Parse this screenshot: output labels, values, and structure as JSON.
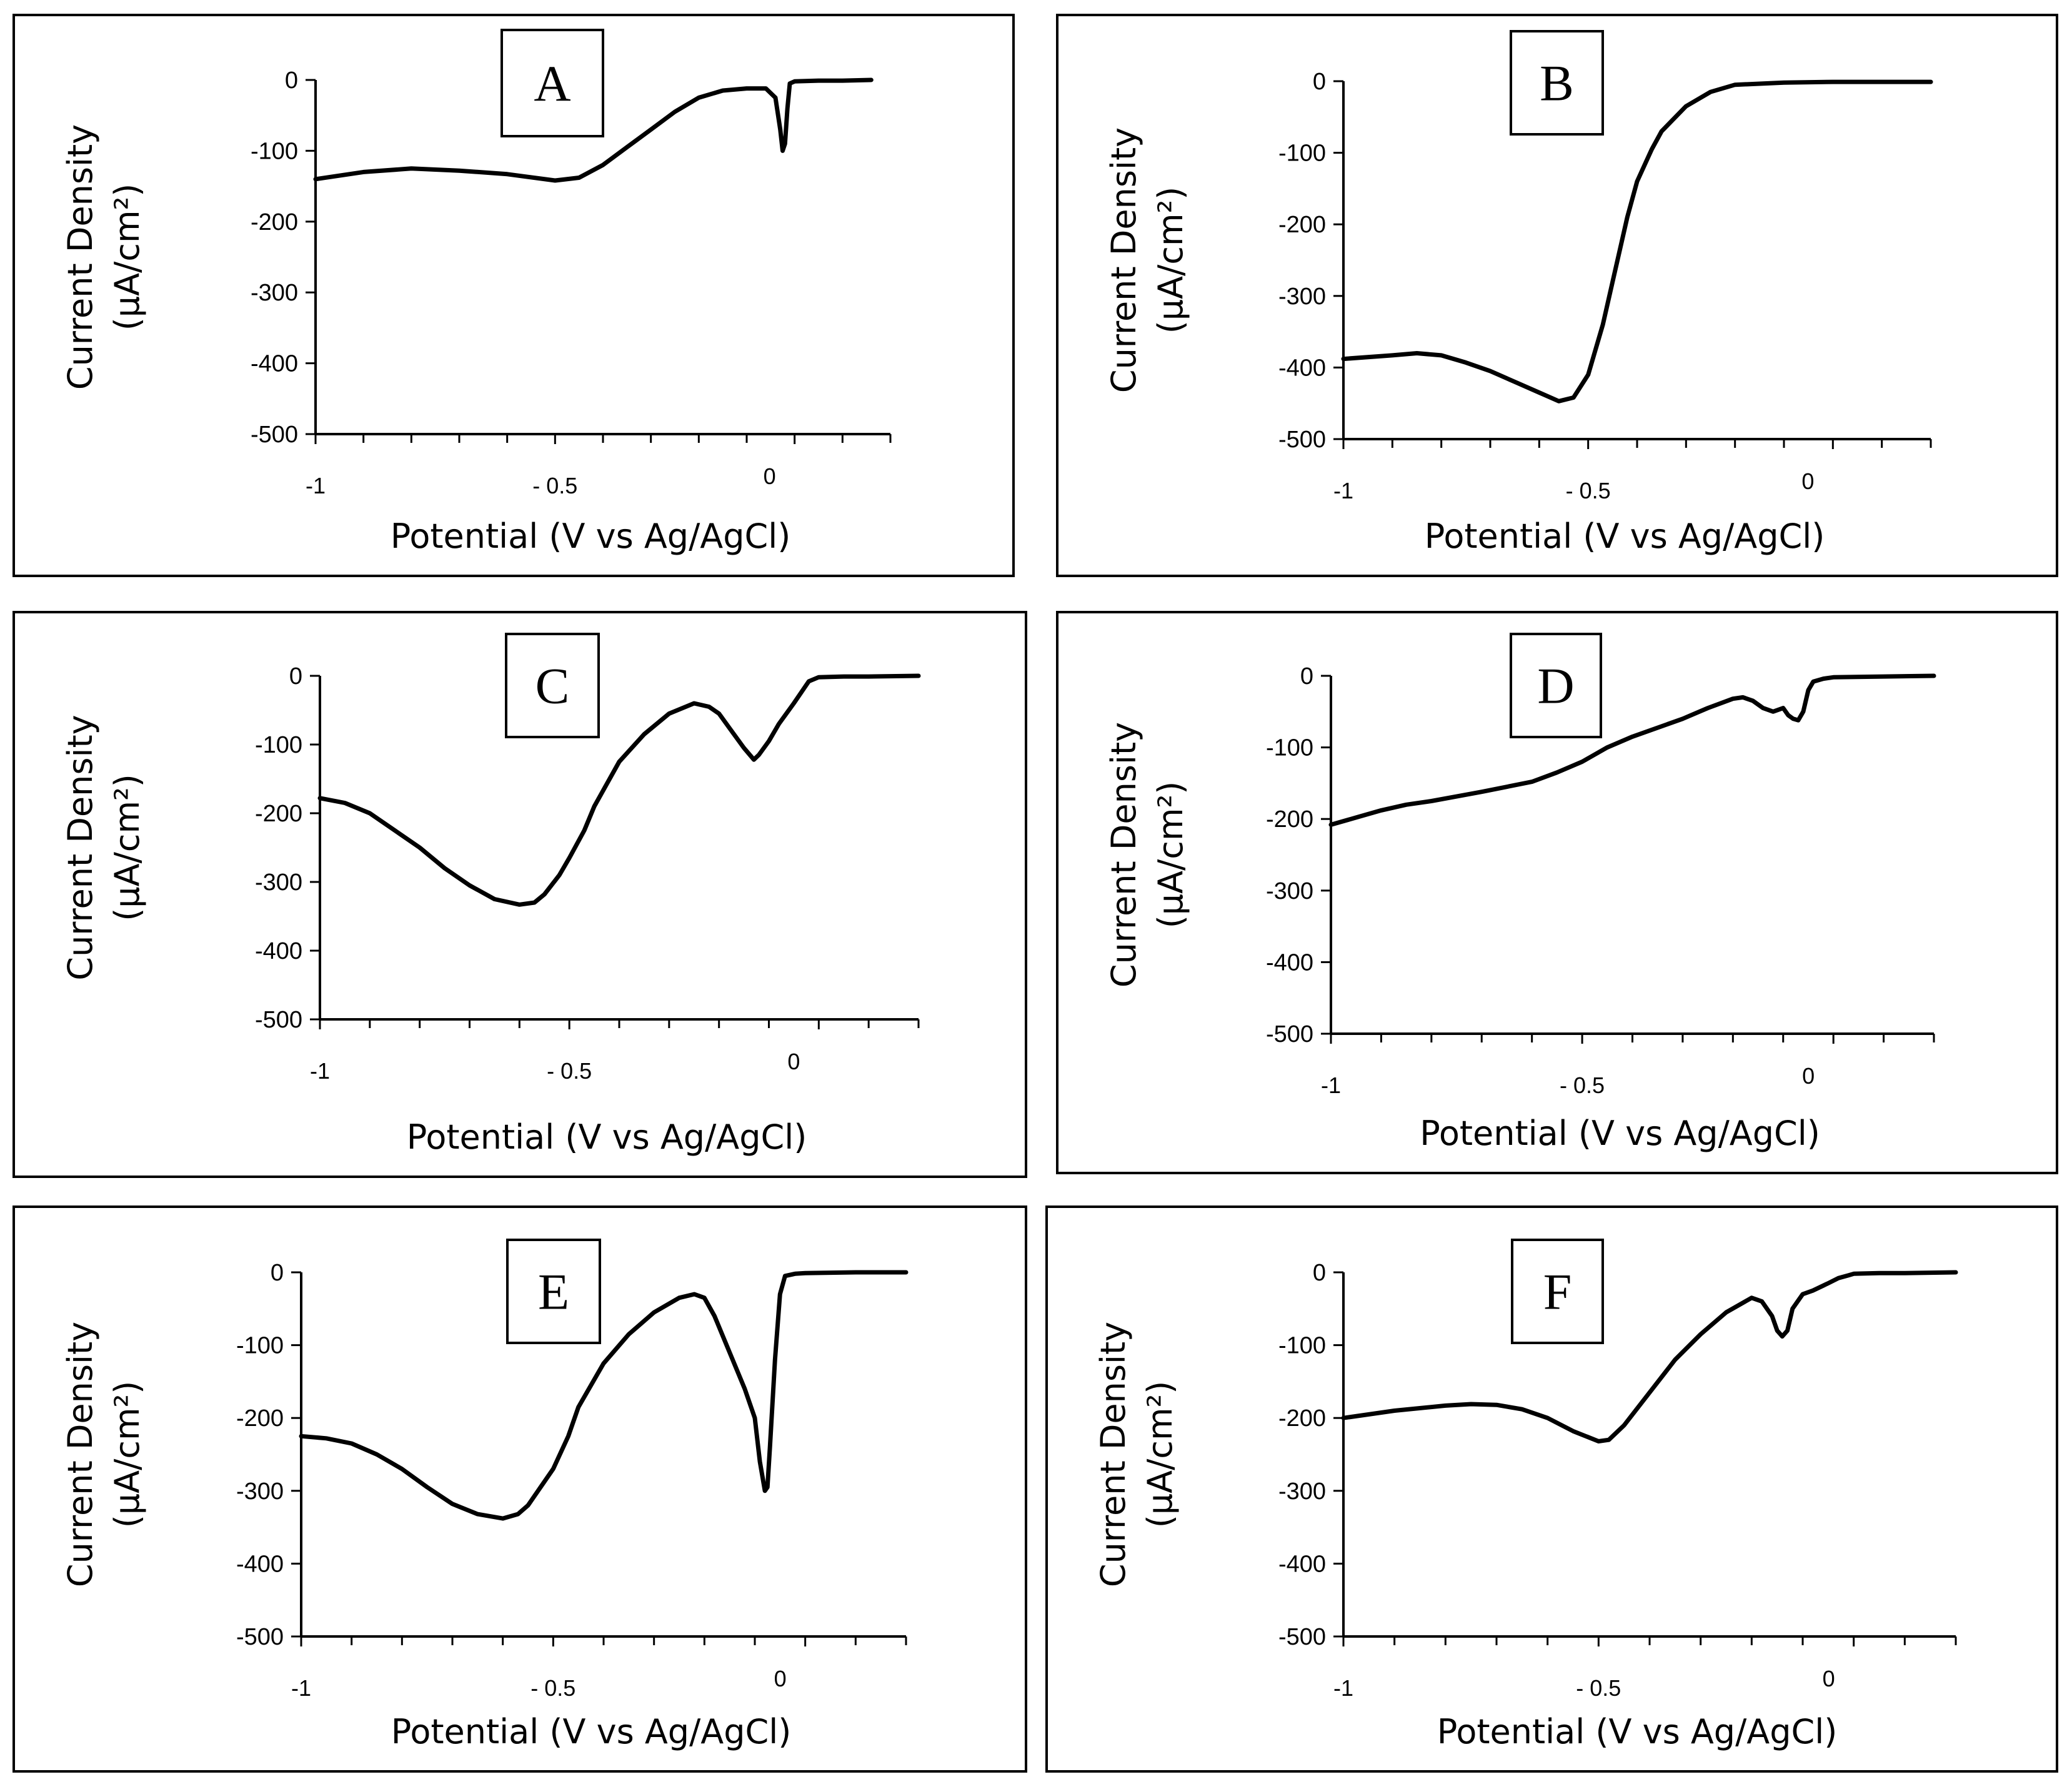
{
  "chart_data": [
    {
      "type": "line",
      "panel_label": "A",
      "xlabel": "Potential (V vs Ag/AgCl)",
      "ylabel_line1": "Current Density",
      "ylabel_line2": "(µA/cm²)",
      "xlim": [
        -1,
        0.2
      ],
      "ylim": [
        -500,
        0
      ],
      "xticks": [
        {
          "v": -1,
          "label": "-1"
        },
        {
          "v": -0.5,
          "label": "- 0.5"
        },
        {
          "v": 0,
          "label": "0"
        }
      ],
      "yticks": [
        {
          "v": 0,
          "label": "0"
        },
        {
          "v": -100,
          "label": "-100"
        },
        {
          "v": -200,
          "label": "-200"
        },
        {
          "v": -300,
          "label": "-300"
        },
        {
          "v": -400,
          "label": "-400"
        },
        {
          "v": -500,
          "label": "-500"
        }
      ],
      "series": [
        {
          "x": [
            -1,
            -0.9,
            -0.8,
            -0.7,
            -0.6,
            -0.5,
            -0.45,
            -0.4,
            -0.35,
            -0.3,
            -0.25,
            -0.2,
            -0.15,
            -0.1,
            -0.06,
            -0.04,
            -0.03,
            -0.025,
            -0.02,
            -0.015,
            -0.01,
            0.0,
            0.05,
            0.1,
            0.16
          ],
          "y": [
            -140,
            -130,
            -125,
            -128,
            -133,
            -142,
            -138,
            -120,
            -95,
            -70,
            -45,
            -25,
            -15,
            -12,
            -12,
            -25,
            -70,
            -100,
            -90,
            -40,
            -5,
            -2,
            -1,
            -1,
            0
          ]
        }
      ]
    },
    {
      "type": "line",
      "panel_label": "B",
      "xlabel": "Potential (V vs Ag/AgCl)",
      "ylabel_line1": "Current Density",
      "ylabel_line2": "(µA/cm²)",
      "xlim": [
        -1,
        0.2
      ],
      "ylim": [
        -500,
        0
      ],
      "xticks": [
        {
          "v": -1,
          "label": "-1"
        },
        {
          "v": -0.5,
          "label": "- 0.5"
        },
        {
          "v": 0,
          "label": "0"
        }
      ],
      "yticks": [
        {
          "v": 0,
          "label": "0"
        },
        {
          "v": -100,
          "label": "-100"
        },
        {
          "v": -200,
          "label": "-200"
        },
        {
          "v": -300,
          "label": "-300"
        },
        {
          "v": -400,
          "label": "-400"
        },
        {
          "v": -500,
          "label": "-500"
        }
      ],
      "series": [
        {
          "x": [
            -1,
            -0.9,
            -0.85,
            -0.8,
            -0.75,
            -0.7,
            -0.65,
            -0.6,
            -0.56,
            -0.53,
            -0.5,
            -0.47,
            -0.45,
            -0.42,
            -0.4,
            -0.37,
            -0.35,
            -0.3,
            -0.25,
            -0.2,
            -0.1,
            0.0,
            0.1,
            0.2
          ],
          "y": [
            -388,
            -383,
            -380,
            -383,
            -393,
            -405,
            -420,
            -435,
            -447,
            -442,
            -410,
            -340,
            -280,
            -190,
            -140,
            -95,
            -70,
            -35,
            -15,
            -5,
            -2,
            -1,
            -1,
            -1
          ]
        }
      ]
    },
    {
      "type": "line",
      "panel_label": "C",
      "xlabel": "Potential (V vs Ag/AgCl)",
      "ylabel_line1": "Current Density",
      "ylabel_line2": "(µA/cm²)",
      "xlim": [
        -1,
        0.2
      ],
      "ylim": [
        -500,
        0
      ],
      "xticks": [
        {
          "v": -1,
          "label": "-1"
        },
        {
          "v": -0.5,
          "label": "- 0.5"
        },
        {
          "v": 0,
          "label": "0"
        }
      ],
      "yticks": [
        {
          "v": 0,
          "label": "0"
        },
        {
          "v": -100,
          "label": "-100"
        },
        {
          "v": -200,
          "label": "-200"
        },
        {
          "v": -300,
          "label": "-300"
        },
        {
          "v": -400,
          "label": "-400"
        },
        {
          "v": -500,
          "label": "-500"
        }
      ],
      "series": [
        {
          "x": [
            -1,
            -0.95,
            -0.9,
            -0.85,
            -0.8,
            -0.75,
            -0.7,
            -0.65,
            -0.6,
            -0.57,
            -0.55,
            -0.52,
            -0.5,
            -0.47,
            -0.45,
            -0.4,
            -0.35,
            -0.3,
            -0.25,
            -0.22,
            -0.2,
            -0.18,
            -0.15,
            -0.13,
            -0.12,
            -0.1,
            -0.08,
            -0.05,
            -0.02,
            0.0,
            0.05,
            0.1,
            0.2
          ],
          "y": [
            -178,
            -185,
            -200,
            -225,
            -250,
            -280,
            -305,
            -325,
            -333,
            -330,
            -318,
            -290,
            -265,
            -225,
            -190,
            -125,
            -85,
            -55,
            -40,
            -45,
            -55,
            -75,
            -105,
            -122,
            -115,
            -95,
            -70,
            -40,
            -8,
            -2,
            -1,
            -1,
            0
          ]
        }
      ]
    },
    {
      "type": "line",
      "panel_label": "D",
      "xlabel": "Potential (V vs Ag/AgCl)",
      "ylabel_line1": "Current Density",
      "ylabel_line2": "(µA/cm²)",
      "xlim": [
        -1,
        0.2
      ],
      "ylim": [
        -500,
        0
      ],
      "xticks": [
        {
          "v": -1,
          "label": "-1"
        },
        {
          "v": -0.5,
          "label": "- 0.5"
        },
        {
          "v": 0,
          "label": "0"
        }
      ],
      "yticks": [
        {
          "v": 0,
          "label": "0"
        },
        {
          "v": -100,
          "label": "-100"
        },
        {
          "v": -200,
          "label": "-200"
        },
        {
          "v": -300,
          "label": "-300"
        },
        {
          "v": -400,
          "label": "-400"
        },
        {
          "v": -500,
          "label": "-500"
        }
      ],
      "series": [
        {
          "x": [
            -1,
            -0.95,
            -0.9,
            -0.85,
            -0.8,
            -0.7,
            -0.6,
            -0.55,
            -0.5,
            -0.45,
            -0.4,
            -0.3,
            -0.25,
            -0.2,
            -0.18,
            -0.16,
            -0.14,
            -0.12,
            -0.1,
            -0.09,
            -0.08,
            -0.07,
            -0.06,
            -0.05,
            -0.04,
            -0.02,
            0.0,
            0.1,
            0.2
          ],
          "y": [
            -208,
            -198,
            -188,
            -180,
            -175,
            -162,
            -148,
            -135,
            -120,
            -100,
            -85,
            -60,
            -45,
            -32,
            -30,
            -35,
            -45,
            -50,
            -45,
            -55,
            -60,
            -62,
            -50,
            -20,
            -8,
            -4,
            -2,
            -1,
            0
          ]
        }
      ]
    },
    {
      "type": "line",
      "panel_label": "E",
      "xlabel": "Potential (V vs Ag/AgCl)",
      "ylabel_line1": "Current Density",
      "ylabel_line2": "(µA/cm²)",
      "xlim": [
        -1,
        0.2
      ],
      "ylim": [
        -500,
        0
      ],
      "xticks": [
        {
          "v": -1,
          "label": "-1"
        },
        {
          "v": -0.5,
          "label": "- 0.5"
        },
        {
          "v": 0,
          "label": "0"
        }
      ],
      "yticks": [
        {
          "v": 0,
          "label": "0"
        },
        {
          "v": -100,
          "label": "-100"
        },
        {
          "v": -200,
          "label": "-200"
        },
        {
          "v": -300,
          "label": "-300"
        },
        {
          "v": -400,
          "label": "-400"
        },
        {
          "v": -500,
          "label": "-500"
        }
      ],
      "series": [
        {
          "x": [
            -1,
            -0.95,
            -0.9,
            -0.85,
            -0.8,
            -0.75,
            -0.7,
            -0.65,
            -0.6,
            -0.57,
            -0.55,
            -0.5,
            -0.47,
            -0.45,
            -0.4,
            -0.35,
            -0.3,
            -0.25,
            -0.22,
            -0.2,
            -0.18,
            -0.15,
            -0.12,
            -0.1,
            -0.09,
            -0.08,
            -0.075,
            -0.07,
            -0.06,
            -0.05,
            -0.04,
            -0.02,
            0.0,
            0.1,
            0.2
          ],
          "y": [
            -225,
            -228,
            -235,
            -250,
            -270,
            -295,
            -318,
            -332,
            -338,
            -332,
            -320,
            -270,
            -225,
            -185,
            -125,
            -85,
            -55,
            -35,
            -30,
            -35,
            -60,
            -110,
            -160,
            -200,
            -260,
            -300,
            -295,
            -240,
            -120,
            -30,
            -5,
            -2,
            -1,
            0,
            0
          ]
        }
      ]
    },
    {
      "type": "line",
      "panel_label": "F",
      "xlabel": "Potential (V vs Ag/AgCl)",
      "ylabel_line1": "Current Density",
      "ylabel_line2": "(µA/cm²)",
      "xlim": [
        -1,
        0.2
      ],
      "ylim": [
        -500,
        0
      ],
      "xticks": [
        {
          "v": -1,
          "label": "-1"
        },
        {
          "v": -0.5,
          "label": "- 0.5"
        },
        {
          "v": 0,
          "label": "0"
        }
      ],
      "yticks": [
        {
          "v": 0,
          "label": "0"
        },
        {
          "v": -100,
          "label": "-100"
        },
        {
          "v": -200,
          "label": "-200"
        },
        {
          "v": -300,
          "label": "-300"
        },
        {
          "v": -400,
          "label": "-400"
        },
        {
          "v": -500,
          "label": "-500"
        }
      ],
      "series": [
        {
          "x": [
            -1,
            -0.9,
            -0.8,
            -0.75,
            -0.7,
            -0.65,
            -0.6,
            -0.55,
            -0.5,
            -0.48,
            -0.45,
            -0.4,
            -0.35,
            -0.3,
            -0.25,
            -0.2,
            -0.18,
            -0.16,
            -0.15,
            -0.14,
            -0.13,
            -0.12,
            -0.1,
            -0.08,
            -0.05,
            -0.03,
            -0.01,
            0.0,
            0.05,
            0.1,
            0.2
          ],
          "y": [
            -200,
            -190,
            -183,
            -181,
            -182,
            -188,
            -200,
            -218,
            -232,
            -230,
            -210,
            -165,
            -120,
            -85,
            -55,
            -35,
            -40,
            -60,
            -80,
            -88,
            -80,
            -50,
            -30,
            -25,
            -15,
            -8,
            -4,
            -2,
            -1,
            -1,
            0
          ]
        }
      ]
    }
  ]
}
